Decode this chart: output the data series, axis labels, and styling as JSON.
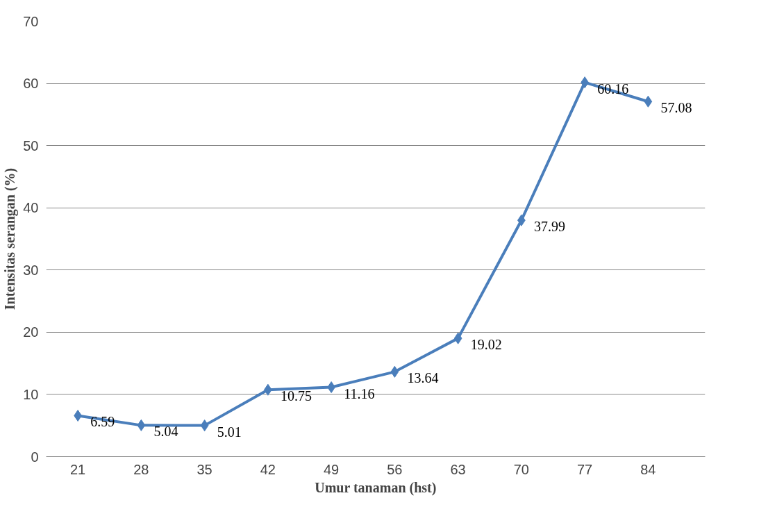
{
  "chart_data": {
    "type": "line",
    "xlabel": "Umur tanaman (hst)",
    "ylabel": "Intensitas serangan (%)",
    "categories": [
      "21",
      "28",
      "35",
      "42",
      "49",
      "56",
      "63",
      "70",
      "77",
      "84"
    ],
    "series": [
      {
        "color": "#4a7ebb",
        "values": [
          6.59,
          5.04,
          5.01,
          10.75,
          11.16,
          13.64,
          19.02,
          37.99,
          60.16,
          57.08
        ]
      }
    ],
    "ylim": [
      0,
      70
    ],
    "yticks": [
      0,
      10,
      20,
      30,
      40,
      50,
      60,
      70
    ],
    "grid": "y",
    "marker": "diamond",
    "line_style": "solid",
    "data_labels": true
  }
}
